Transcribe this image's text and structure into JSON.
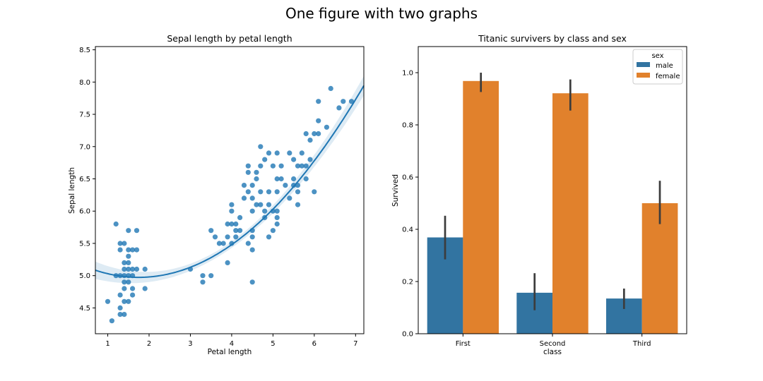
{
  "figure": {
    "title": "One figure with two graphs"
  },
  "chart_data": [
    {
      "type": "scatter",
      "title": "Sepal length by petal length",
      "xlabel": "Petal length",
      "ylabel": "Sepal length",
      "xlim": [
        0.7,
        7.2
      ],
      "ylim": [
        4.1,
        8.55
      ],
      "xticks": [
        1,
        2,
        3,
        4,
        5,
        6,
        7
      ],
      "yticks": [
        4.5,
        5.0,
        5.5,
        6.0,
        6.5,
        7.0,
        7.5,
        8.0,
        8.5
      ],
      "grid": false,
      "color": "#1f77b4",
      "points": [
        [
          1.0,
          4.6
        ],
        [
          1.1,
          4.3
        ],
        [
          1.2,
          5.8
        ],
        [
          1.2,
          5.0
        ],
        [
          1.3,
          4.4
        ],
        [
          1.3,
          4.5
        ],
        [
          1.3,
          4.7
        ],
        [
          1.3,
          5.0
        ],
        [
          1.3,
          5.4
        ],
        [
          1.3,
          5.5
        ],
        [
          1.4,
          4.4
        ],
        [
          1.4,
          4.6
        ],
        [
          1.4,
          4.8
        ],
        [
          1.4,
          4.9
        ],
        [
          1.4,
          5.0
        ],
        [
          1.4,
          5.1
        ],
        [
          1.4,
          5.2
        ],
        [
          1.4,
          5.5
        ],
        [
          1.5,
          4.6
        ],
        [
          1.5,
          4.9
        ],
        [
          1.5,
          5.0
        ],
        [
          1.5,
          5.1
        ],
        [
          1.5,
          5.2
        ],
        [
          1.5,
          5.3
        ],
        [
          1.5,
          5.4
        ],
        [
          1.5,
          5.7
        ],
        [
          1.6,
          4.7
        ],
        [
          1.6,
          4.8
        ],
        [
          1.6,
          5.0
        ],
        [
          1.6,
          5.1
        ],
        [
          1.6,
          5.4
        ],
        [
          1.7,
          5.1
        ],
        [
          1.7,
          5.4
        ],
        [
          1.7,
          5.7
        ],
        [
          1.9,
          4.8
        ],
        [
          1.9,
          5.1
        ],
        [
          3.0,
          5.1
        ],
        [
          3.3,
          4.9
        ],
        [
          3.3,
          5.0
        ],
        [
          3.5,
          5.0
        ],
        [
          3.5,
          5.7
        ],
        [
          3.6,
          5.6
        ],
        [
          3.7,
          5.5
        ],
        [
          3.8,
          5.5
        ],
        [
          3.9,
          5.2
        ],
        [
          3.9,
          5.6
        ],
        [
          3.9,
          5.8
        ],
        [
          4.0,
          5.5
        ],
        [
          4.0,
          5.8
        ],
        [
          4.0,
          6.0
        ],
        [
          4.0,
          6.1
        ],
        [
          4.1,
          5.6
        ],
        [
          4.1,
          5.7
        ],
        [
          4.1,
          5.8
        ],
        [
          4.2,
          5.7
        ],
        [
          4.2,
          5.9
        ],
        [
          4.3,
          6.2
        ],
        [
          4.3,
          6.4
        ],
        [
          4.4,
          5.5
        ],
        [
          4.4,
          6.3
        ],
        [
          4.4,
          6.6
        ],
        [
          4.4,
          6.7
        ],
        [
          4.5,
          4.9
        ],
        [
          4.5,
          5.4
        ],
        [
          4.5,
          5.6
        ],
        [
          4.5,
          5.7
        ],
        [
          4.5,
          6.0
        ],
        [
          4.5,
          6.2
        ],
        [
          4.5,
          6.4
        ],
        [
          4.6,
          6.1
        ],
        [
          4.6,
          6.5
        ],
        [
          4.6,
          6.6
        ],
        [
          4.7,
          6.1
        ],
        [
          4.7,
          6.3
        ],
        [
          4.7,
          6.7
        ],
        [
          4.7,
          7.0
        ],
        [
          4.8,
          5.9
        ],
        [
          4.8,
          6.0
        ],
        [
          4.8,
          6.8
        ],
        [
          4.9,
          5.6
        ],
        [
          4.9,
          6.1
        ],
        [
          4.9,
          6.3
        ],
        [
          4.9,
          6.9
        ],
        [
          5.0,
          5.7
        ],
        [
          5.0,
          6.0
        ],
        [
          5.0,
          6.7
        ],
        [
          5.1,
          5.8
        ],
        [
          5.1,
          5.9
        ],
        [
          5.1,
          6.0
        ],
        [
          5.1,
          6.3
        ],
        [
          5.1,
          6.5
        ],
        [
          5.1,
          6.9
        ],
        [
          5.2,
          6.5
        ],
        [
          5.2,
          6.7
        ],
        [
          5.3,
          6.4
        ],
        [
          5.4,
          6.2
        ],
        [
          5.4,
          6.9
        ],
        [
          5.5,
          6.4
        ],
        [
          5.5,
          6.5
        ],
        [
          5.5,
          6.8
        ],
        [
          5.6,
          6.1
        ],
        [
          5.6,
          6.3
        ],
        [
          5.6,
          6.4
        ],
        [
          5.6,
          6.7
        ],
        [
          5.7,
          6.7
        ],
        [
          5.7,
          6.9
        ],
        [
          5.8,
          6.5
        ],
        [
          5.8,
          6.7
        ],
        [
          5.8,
          7.2
        ],
        [
          5.9,
          6.8
        ],
        [
          5.9,
          7.1
        ],
        [
          6.0,
          6.3
        ],
        [
          6.0,
          7.2
        ],
        [
          6.1,
          7.2
        ],
        [
          6.1,
          7.4
        ],
        [
          6.1,
          7.7
        ],
        [
          6.3,
          7.3
        ],
        [
          6.4,
          7.9
        ],
        [
          6.6,
          7.6
        ],
        [
          6.7,
          7.7
        ],
        [
          6.9,
          7.7
        ]
      ],
      "fit": {
        "type": "quadratic",
        "coef": [
          0.1,
          -0.35,
          5.28
        ],
        "ci_band": true
      }
    },
    {
      "type": "bar",
      "title": "Titanic survivers by class and sex",
      "xlabel": "class",
      "ylabel": "Survived",
      "categories": [
        "First",
        "Second",
        "Third"
      ],
      "ylim": [
        0,
        1.1
      ],
      "yticks": [
        0.0,
        0.2,
        0.4,
        0.6,
        0.8,
        1.0
      ],
      "grid": false,
      "legend": {
        "title": "sex",
        "placement": "top-right"
      },
      "series": [
        {
          "name": "male",
          "color": "#3274a1",
          "values": [
            0.369,
            0.157,
            0.135
          ],
          "err_low": [
            0.285,
            0.09,
            0.095
          ],
          "err_high": [
            0.452,
            0.232,
            0.173
          ]
        },
        {
          "name": "female",
          "color": "#e1812c",
          "values": [
            0.968,
            0.921,
            0.5
          ],
          "err_low": [
            0.926,
            0.855,
            0.42
          ],
          "err_high": [
            1.0,
            0.974,
            0.586
          ]
        }
      ],
      "error_bar_color": "#3c3c3c"
    }
  ]
}
